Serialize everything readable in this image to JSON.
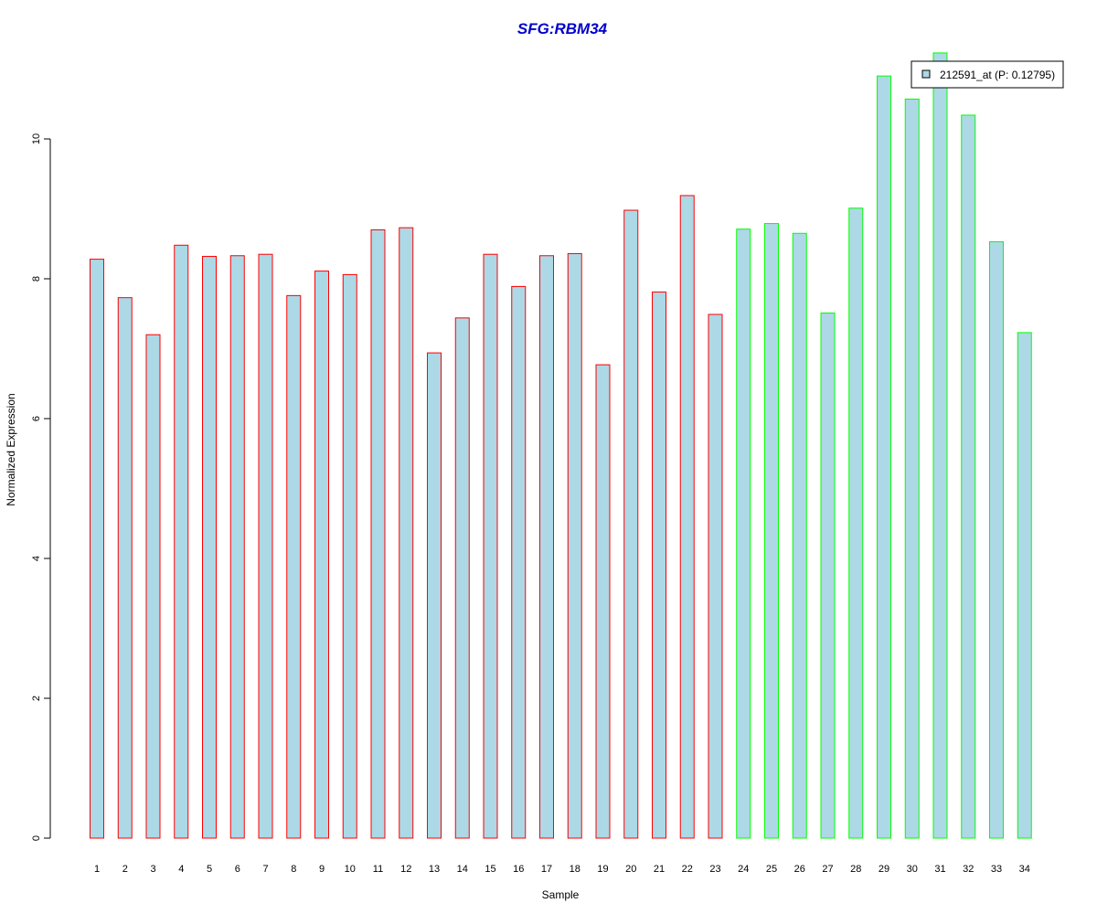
{
  "chart_data": {
    "type": "bar",
    "title": "SFG:RBM34",
    "xlabel": "Sample",
    "ylabel": "Normalized Expression",
    "ylim": [
      0,
      11.2
    ],
    "y_ticks": [
      0,
      2,
      4,
      6,
      8,
      10
    ],
    "categories": [
      "1",
      "2",
      "3",
      "4",
      "5",
      "6",
      "7",
      "8",
      "9",
      "10",
      "11",
      "12",
      "13",
      "14",
      "15",
      "16",
      "17",
      "18",
      "19",
      "20",
      "21",
      "22",
      "23",
      "24",
      "25",
      "26",
      "27",
      "28",
      "29",
      "30",
      "31",
      "32",
      "33",
      "34"
    ],
    "series": [
      {
        "name": "212591_at (P: 0.12795)",
        "values": [
          8.28,
          7.73,
          7.2,
          8.48,
          8.32,
          8.33,
          8.35,
          7.76,
          8.11,
          8.06,
          8.7,
          8.73,
          6.94,
          7.44,
          8.35,
          7.89,
          8.33,
          8.36,
          6.77,
          8.98,
          7.81,
          9.19,
          7.49,
          8.71,
          8.79,
          8.65,
          7.51,
          9.01,
          10.9,
          10.57,
          11.23,
          10.34,
          8.53,
          7.23
        ]
      }
    ],
    "group_border_colors": [
      "#ff0000",
      "#ff0000",
      "#ff0000",
      "#ff0000",
      "#ff0000",
      "#ff0000",
      "#ff0000",
      "#ff0000",
      "#ff0000",
      "#ff0000",
      "#ff0000",
      "#ff0000",
      "#ff0000",
      "#ff0000",
      "#ff0000",
      "#ff0000",
      "#ff0000",
      "#ff0000",
      "#ff0000",
      "#ff0000",
      "#ff0000",
      "#ff0000",
      "#ff0000",
      "#00ff00",
      "#00ff00",
      "#00ff00",
      "#00ff00",
      "#00ff00",
      "#00ff00",
      "#00ff00",
      "#00ff00",
      "#00ff00",
      "#00ff00",
      "#00ff00"
    ],
    "bar_fill": "#add8e6",
    "title_color": "#0000cc",
    "legend": {
      "label": "212591_at (P: 0.12795)",
      "position": "top-right"
    },
    "grid": false
  }
}
